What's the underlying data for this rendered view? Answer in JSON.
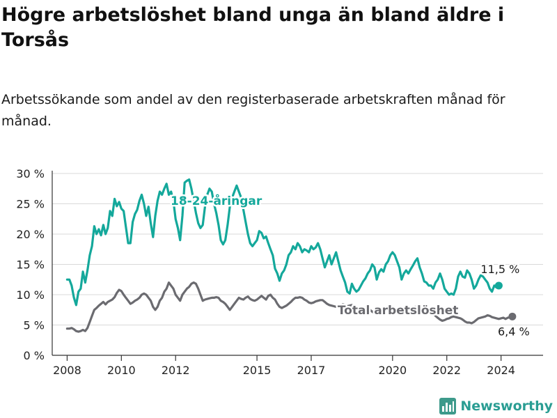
{
  "title": "Högre arbetslöshet bland unga än bland äldre i Torsås",
  "subtitle": "Arbetssökande som andel av den registerbaserade arbetskraften månad för månad.",
  "logo": {
    "text": "Newsworthy",
    "icon": "bar-chart-logo-icon",
    "color": "#3d9a8b"
  },
  "colors": {
    "youth": "#14a89b",
    "total": "#6b6b70",
    "grid": "#d9d9d9",
    "axis": "#333333"
  },
  "chart_data": {
    "type": "line",
    "x_ticks": [
      2008,
      2010,
      2012,
      2015,
      2017,
      2020,
      2022,
      2024
    ],
    "y_ticks": [
      0,
      5,
      10,
      15,
      20,
      25,
      30
    ],
    "y_tick_labels": [
      "0 %",
      "5 %",
      "10 %",
      "15 %",
      "20 %",
      "25 %",
      "30 %"
    ],
    "xlim": [
      2007.45,
      2025.55
    ],
    "ylim": [
      0,
      30
    ],
    "grid": "horizontal",
    "series": [
      {
        "name": "18-24-åringar",
        "color": "#14a89b",
        "start": "2008-01",
        "last_value_label": "11,5 %",
        "values": [
          12.5,
          12.5,
          11.5,
          9.5,
          8.3,
          10.5,
          11,
          13.8,
          12,
          14,
          16.5,
          18,
          21.3,
          20,
          20.8,
          19.8,
          21.5,
          20,
          21,
          23.8,
          23,
          25.8,
          24.6,
          25.3,
          24.2,
          23.8,
          21.2,
          18.5,
          18.5,
          22,
          23.3,
          24,
          25.5,
          26.5,
          25,
          23,
          24.5,
          21.8,
          19.5,
          23,
          25.5,
          27,
          26.5,
          27.5,
          28.3,
          26.5,
          27,
          25.5,
          22.5,
          21,
          19,
          23,
          28.5,
          28.8,
          29,
          27.5,
          25.5,
          23.5,
          21.8,
          21,
          21.5,
          24.5,
          26.5,
          27.5,
          27,
          25,
          23.5,
          21.5,
          19,
          18.3,
          19,
          21.5,
          24.5,
          26,
          27,
          28,
          27,
          26,
          24,
          22,
          20,
          18.5,
          18,
          18.5,
          19,
          20.5,
          20.2,
          19.3,
          19.6,
          18.5,
          17.5,
          16.5,
          14.3,
          13.5,
          12.3,
          13.5,
          14,
          15,
          16.5,
          17,
          18,
          17.5,
          18.5,
          18,
          17,
          17.5,
          17.3,
          17,
          18,
          17.5,
          17.8,
          18.5,
          17.5,
          16,
          14.5,
          15.5,
          16.5,
          15,
          16,
          17,
          15.5,
          14,
          13,
          12,
          10.5,
          10.2,
          11.8,
          11,
          10.5,
          10.8,
          11.5,
          12.2,
          12.7,
          13.5,
          14,
          15,
          14.5,
          12.5,
          13.7,
          14.2,
          13.8,
          15,
          15.5,
          16.5,
          17,
          16.5,
          15.5,
          14.5,
          12.5,
          13.5,
          14,
          13.5,
          14.2,
          14.8,
          15.5,
          16,
          14.5,
          13.5,
          12.2,
          12,
          11.5,
          11.5,
          11,
          12,
          12.5,
          13.5,
          12.5,
          11,
          10.5,
          10,
          10.2,
          10,
          11,
          13,
          13.8,
          13,
          12.8,
          14,
          13.5,
          12.5,
          11,
          11.5,
          12.5,
          13.2,
          13,
          12.5,
          12,
          11,
          10.5,
          11.5,
          11.2,
          11.5
        ]
      },
      {
        "name": "Total arbetslöshet",
        "color": "#6b6b70",
        "start": "2008-01",
        "last_value_label": "6,4 %",
        "values": [
          4.4,
          4.4,
          4.5,
          4.3,
          4,
          3.9,
          4,
          4.2,
          4,
          4.5,
          5.5,
          6.5,
          7.5,
          7.8,
          8.2,
          8.5,
          8.8,
          8.4,
          8.8,
          9,
          9.2,
          9.6,
          10.3,
          10.8,
          10.6,
          10,
          9.5,
          9,
          8.5,
          8.7,
          9,
          9.2,
          9.5,
          10,
          10.2,
          10,
          9.5,
          9,
          8,
          7.5,
          8,
          9,
          9.5,
          10.5,
          11,
          12,
          11.5,
          11,
          10,
          9.5,
          9,
          10,
          10.5,
          11,
          11.3,
          11.8,
          12,
          11.8,
          11,
          10,
          9,
          9.2,
          9.3,
          9.4,
          9.5,
          9.5,
          9.6,
          9.5,
          9,
          8.8,
          8.5,
          8,
          7.5,
          8,
          8.5,
          9,
          9.5,
          9.3,
          9.2,
          9.5,
          9.7,
          9.3,
          9.1,
          9,
          9.2,
          9.5,
          9.8,
          9.5,
          9.2,
          9.8,
          10,
          9.5,
          9.2,
          8.5,
          8,
          7.8,
          8,
          8.2,
          8.5,
          8.8,
          9.2,
          9.5,
          9.5,
          9.6,
          9.5,
          9.2,
          9,
          8.7,
          8.6,
          8.7,
          8.9,
          9,
          9.1,
          9.1,
          8.8,
          8.5,
          8.3,
          8.2,
          8.1,
          8,
          8.1,
          8.2,
          8.4,
          8.3,
          8.1,
          8.2,
          8.3,
          8,
          7.8,
          7.6,
          7.5,
          7.7,
          7.9,
          7.8,
          7.5,
          7.2,
          7,
          7.1,
          7.3,
          7.5,
          7.6,
          7.7,
          7.8,
          8,
          7.9,
          7.5,
          7.2,
          7.1,
          7.3,
          7.5,
          7.6,
          7.7,
          7.8,
          7.9,
          8,
          7.6,
          7.2,
          7,
          6.9,
          7.3,
          7.4,
          7.1,
          6.8,
          6.5,
          6.2,
          5.9,
          5.7,
          5.8,
          6,
          6.1,
          6.3,
          6.4,
          6.3,
          6.2,
          6.1,
          5.9,
          5.6,
          5.4,
          5.4,
          5.3,
          5.5,
          5.8,
          6.1,
          6.2,
          6.3,
          6.4,
          6.6,
          6.5,
          6.3,
          6.2,
          6.1,
          6,
          6.1,
          6.2,
          6,
          6.2,
          6.3,
          6.4
        ]
      }
    ],
    "annotations": [
      {
        "text": "18-24-åringar",
        "series": 0,
        "x": 2013.5,
        "y": 25.5
      },
      {
        "text": "Total arbetslöshet",
        "series": 1,
        "x": 2020.2,
        "y": 7.5
      }
    ]
  }
}
